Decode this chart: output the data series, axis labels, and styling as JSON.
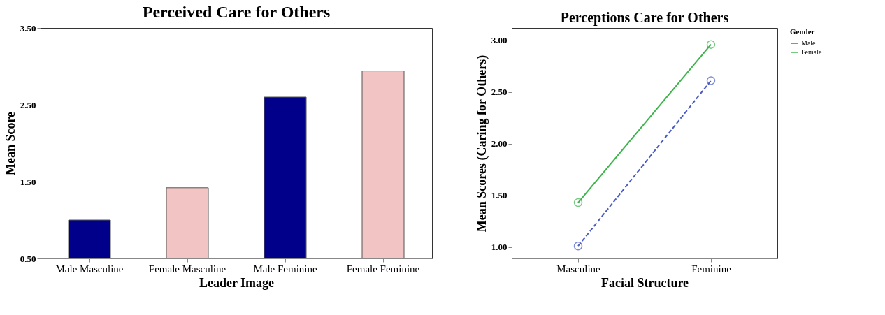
{
  "chart_data": [
    {
      "type": "bar",
      "title": "Perceived Care for Others",
      "xlabel": "Leader Image",
      "ylabel": "Mean Score",
      "categories": [
        "Male Masculine",
        "Female Masculine",
        "Male Feminine",
        "Female Feminine"
      ],
      "values": [
        1.0,
        1.42,
        2.6,
        2.94
      ],
      "colors": [
        "#00008b",
        "#f2c4c4",
        "#00008b",
        "#f2c4c4"
      ],
      "ylim": [
        0.5,
        3.5
      ],
      "yticks": [
        {
          "value": 0.5,
          "label": "0.50"
        },
        {
          "value": 1.5,
          "label": "1.50"
        },
        {
          "value": 2.5,
          "label": "2.50"
        },
        {
          "value": 3.5,
          "label": "3.50"
        }
      ],
      "grid": false
    },
    {
      "type": "line",
      "title": "Perceptions Care for Others",
      "xlabel": "Facial Structure",
      "ylabel": "Mean Scores (Caring for Others)",
      "legend_title": "Gender",
      "categories": [
        "Masculine",
        "Feminine"
      ],
      "series": [
        {
          "name": "Male",
          "color": "#4a5bc4",
          "values": [
            1.01,
            2.61
          ],
          "line_style": "dashed"
        },
        {
          "name": "Female",
          "color": "#3cb44b",
          "values": [
            1.43,
            2.96
          ],
          "line_style": "solid"
        }
      ],
      "ylim": [
        0.89,
        3.12
      ],
      "yticks": [
        {
          "value": 1.0,
          "label": "1.00"
        },
        {
          "value": 1.5,
          "label": "1.50"
        },
        {
          "value": 2.0,
          "label": "2.00"
        },
        {
          "value": 2.5,
          "label": "2.50"
        },
        {
          "value": 3.0,
          "label": "3.00"
        }
      ],
      "marker": "circle",
      "grid": false,
      "legend": "right"
    }
  ]
}
